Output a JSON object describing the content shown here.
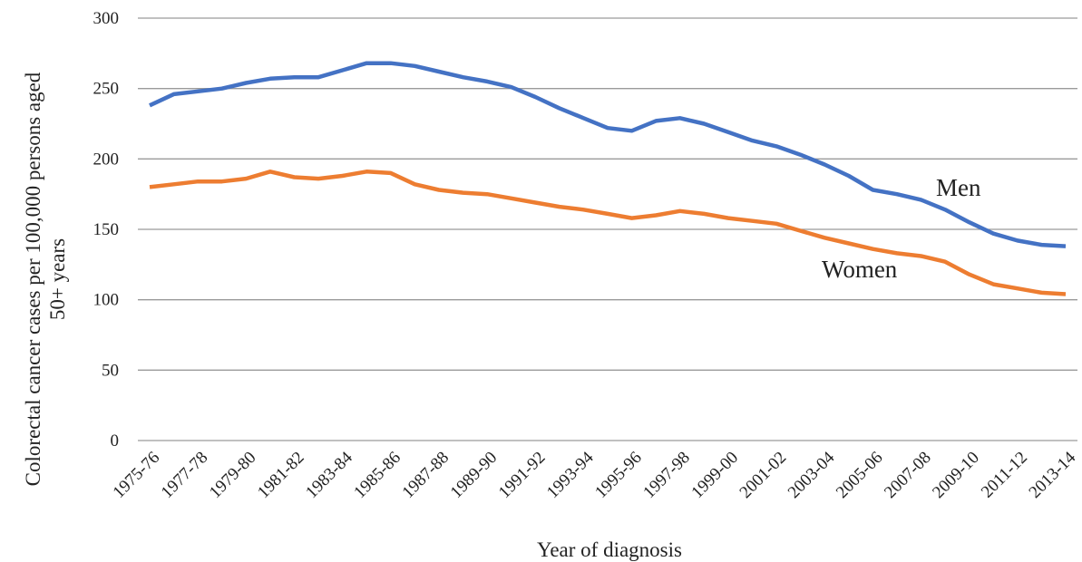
{
  "chart_data": {
    "type": "line",
    "x_label": "Year of diagnosis",
    "y_label": [
      "Colorectal cancer cases per 100,000 persons aged",
      "50+ years"
    ],
    "categories": [
      "1975-76",
      null,
      "1977-78",
      null,
      "1979-80",
      null,
      "1981-82",
      null,
      "1983-84",
      null,
      "1985-86",
      null,
      "1987-88",
      null,
      "1989-90",
      null,
      "1991-92",
      null,
      "1993-94",
      null,
      "1995-96",
      null,
      "1997-98",
      null,
      "1999-00",
      null,
      "2001-02",
      null,
      "2003-04",
      null,
      "2005-06",
      null,
      "2007-08",
      null,
      "2009-10",
      null,
      "2011-12",
      null,
      "2013-14"
    ],
    "series": [
      {
        "name": "Men",
        "color": "#4472c4",
        "values": [
          238,
          246,
          248,
          250,
          254,
          257,
          258,
          258,
          263,
          268,
          268,
          266,
          262,
          258,
          255,
          251,
          244,
          236,
          229,
          222,
          220,
          227,
          229,
          225,
          219,
          213,
          209,
          203,
          196,
          188,
          178,
          175,
          171,
          164,
          155,
          147,
          142,
          139,
          138
        ]
      },
      {
        "name": "Women",
        "color": "#ed7d31",
        "values": [
          180,
          182,
          184,
          184,
          186,
          191,
          187,
          186,
          188,
          191,
          190,
          182,
          178,
          176,
          175,
          172,
          169,
          166,
          164,
          161,
          158,
          160,
          163,
          161,
          158,
          156,
          154,
          149,
          144,
          140,
          136,
          133,
          131,
          127,
          118,
          111,
          108,
          105,
          104
        ]
      }
    ],
    "ylim": [
      0,
      300
    ],
    "yticks": [
      0,
      50,
      100,
      150,
      200,
      250,
      300
    ],
    "grid": true
  }
}
